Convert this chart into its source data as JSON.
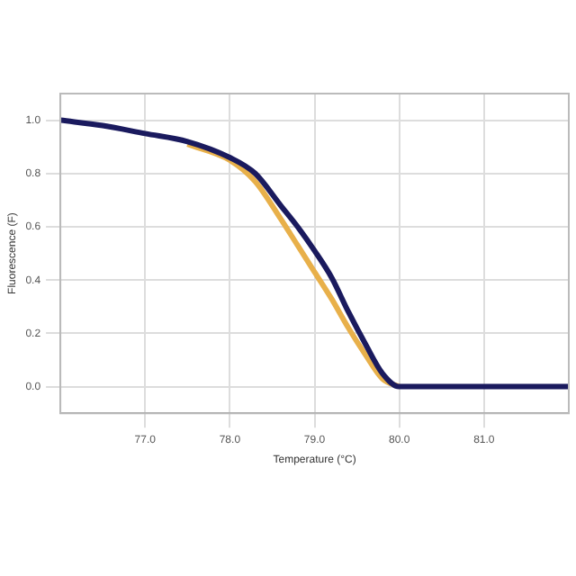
{
  "chart_data": {
    "type": "line",
    "xlabel": "Temperature (°C)",
    "ylabel": "Fluorescence (F)",
    "xlim": [
      76.0,
      82.0
    ],
    "ylim": [
      -0.1,
      1.1
    ],
    "xticks": [
      {
        "value": 77,
        "label": "77.0"
      },
      {
        "value": 78,
        "label": "78.0"
      },
      {
        "value": 79,
        "label": "79.0"
      },
      {
        "value": 80,
        "label": "80.0"
      },
      {
        "value": 81,
        "label": "81.0"
      }
    ],
    "yticks": [
      {
        "value": 0,
        "label": "0.0"
      },
      {
        "value": 0.2,
        "label": "0.2"
      },
      {
        "value": 0.4,
        "label": "0.4"
      },
      {
        "value": 0.6,
        "label": "0.6"
      },
      {
        "value": 0.8,
        "label": "0.8"
      },
      {
        "value": 1,
        "label": "1.0"
      }
    ],
    "grid": true,
    "legend": false,
    "marker": "none",
    "line_style": "solid",
    "series": [
      {
        "color": "#e8b04a",
        "x": [
          77.5,
          78.0,
          78.3,
          78.6,
          78.8,
          79.0,
          79.2,
          79.4,
          79.6,
          79.8,
          80.0
        ],
        "values": [
          0.91,
          0.85,
          0.77,
          0.63,
          0.53,
          0.43,
          0.33,
          0.22,
          0.12,
          0.03,
          0.0
        ]
      },
      {
        "color": "#1a1a5e",
        "x": [
          76.0,
          76.5,
          77.0,
          77.5,
          78.0,
          78.3,
          78.6,
          78.8,
          79.0,
          79.2,
          79.4,
          79.6,
          79.8,
          80.0,
          80.5,
          81.0,
          82.0
        ],
        "values": [
          1.0,
          0.98,
          0.95,
          0.92,
          0.86,
          0.8,
          0.68,
          0.6,
          0.51,
          0.41,
          0.28,
          0.16,
          0.05,
          0.0,
          0.0,
          0.0,
          0.0
        ]
      }
    ]
  }
}
